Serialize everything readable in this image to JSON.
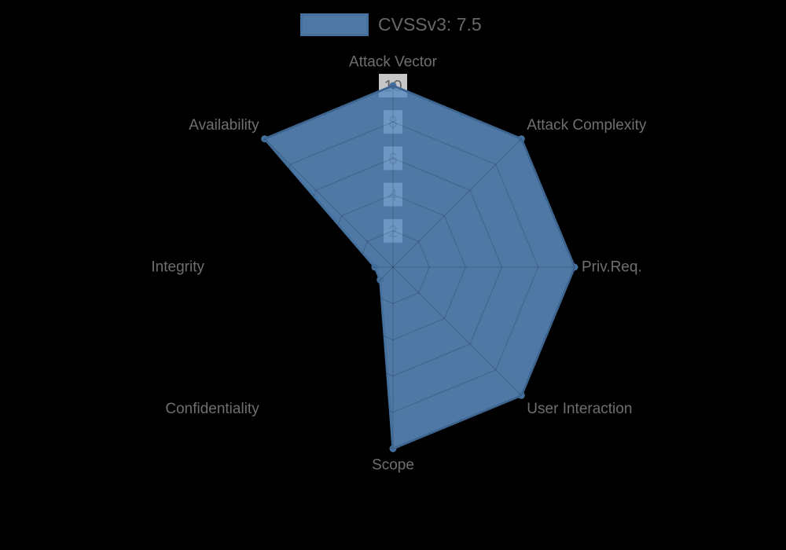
{
  "legend": {
    "label": "CVSSv3: 7.5",
    "swatch_color": "#4f78a5",
    "position": "top"
  },
  "chart_data": {
    "type": "radar",
    "title": "CVSSv3: 7.5",
    "categories": [
      "Attack Vector",
      "Attack Complexity",
      "Priv.Req.",
      "User Interaction",
      "Scope",
      "Confidentiality",
      "Integrity",
      "Availability"
    ],
    "series": [
      {
        "name": "CVSSv3: 7.5",
        "values": [
          10,
          10,
          10,
          10,
          10,
          1,
          1,
          10
        ]
      }
    ],
    "rmin": 0,
    "rmax": 10,
    "ticks": [
      2,
      4,
      6,
      8,
      10
    ],
    "grid": true,
    "grid_shape": "polygon",
    "legend_position": "top",
    "colors": {
      "fill": "#5d8dc2",
      "fill_opacity": 0.85,
      "stroke": "#44709e",
      "grid": "rgba(0,0,0,0.18)",
      "label": "#6f6f6f",
      "tick_text": "#636363",
      "tick_backdrop": "rgba(255,255,255,0.78)",
      "background": "#000000"
    }
  }
}
